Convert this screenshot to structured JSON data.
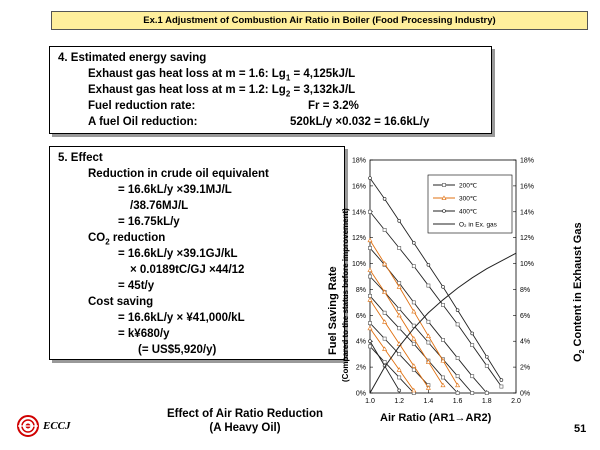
{
  "header": {
    "title": "Ex.1  Adjustment of Combustion Air Ratio in Boiler (Food Processing Industry)"
  },
  "saving": {
    "heading": "4. Estimated energy saving",
    "rows": [
      {
        "label": "Exhaust gas heat loss at m = 1.6: Lg",
        "sub": "1",
        "value": " = 4,125kJ/L"
      },
      {
        "label": "Exhaust gas heat loss at m = 1.2: Lg",
        "sub": "2",
        "value": " = 3,132kJ/L"
      }
    ],
    "fuel_rate_label": "Fuel reduction rate:",
    "fuel_rate_value": "Fr = 3.2%",
    "oil_label": "A fuel Oil reduction:",
    "oil_value": "520kL/y ×0.032 = 16.6kL/y"
  },
  "effect": {
    "heading": "5. Effect",
    "crude_heading": "Reduction in crude oil equivalent",
    "crude_line1": "= 16.6kL/y  ×39.1MJ/L",
    "crude_line2": "/38.76MJ/L",
    "crude_line3": "= 16.75kL/y",
    "co2_heading_pre": "CO",
    "co2_heading_sub": "2",
    "co2_heading_post": " reduction",
    "co2_line1": "= 16.6kL/y  ×39.1GJ/kL",
    "co2_line2": "×  0.0189tC/GJ  ×44/12",
    "co2_line3": "= 45t/y",
    "cost_heading": "Cost saving",
    "cost_line1": "= 16.6kL/y  ×  ¥41,000/kL",
    "cost_line2": "= k¥680/y",
    "cost_line3": "(= US$5,920/y)"
  },
  "caption": {
    "line1": "Effect of Air Ratio Reduction",
    "line2": "(A Heavy Oil)"
  },
  "logo": {
    "text": "ECCJ"
  },
  "page_number": "51",
  "chart_data": {
    "type": "line",
    "xlabel": "Air Ratio (AR1→AR2)",
    "ylabel": "Fuel Saving Rate",
    "ylabel2": "(Compared to the status before improvement)",
    "y2label_pre": "O",
    "y2label_sub": "2",
    "y2label_post": " Content in Exhaust Gas",
    "xlim": [
      1.0,
      2.0
    ],
    "ylim": [
      0,
      18
    ],
    "x_ticks": [
      "1.0",
      "1.2",
      "1.4",
      "1.6",
      "1.8",
      "2.0"
    ],
    "y_ticks": [
      "0%",
      "2%",
      "4%",
      "6%",
      "8%",
      "10%",
      "12%",
      "14%",
      "16%",
      "18%"
    ],
    "legend": [
      "200℃",
      "300℃",
      "400℃",
      "O₂ in Ex. gas"
    ],
    "colors": {
      "200": "#222222",
      "300": "#e07010",
      "400": "#222222",
      "o2": "#222222",
      "marker": "#555555"
    },
    "series_200": [
      {
        "start": 1.0,
        "values": [
          3.6,
          2.4,
          1.2,
          0
        ]
      },
      {
        "start": 1.0,
        "values": [
          5.4,
          4.2,
          3.0,
          1.8,
          0.6
        ]
      },
      {
        "start": 1.0,
        "values": [
          7.5,
          6.2,
          5.0,
          3.8,
          2.5,
          1.2,
          0
        ]
      },
      {
        "start": 1.0,
        "values": [
          9.0,
          7.8,
          6.5,
          5.2,
          3.9,
          2.6,
          1.3,
          0
        ]
      },
      {
        "start": 1.0,
        "values": [
          11.2,
          9.9,
          8.5,
          7.0,
          5.5,
          4.1,
          2.7,
          1.3,
          0
        ]
      },
      {
        "start": 1.0,
        "values": [
          14.0,
          12.6,
          11.2,
          9.8,
          8.3,
          6.8,
          5.3,
          3.7,
          2.1,
          0.5
        ]
      }
    ],
    "series_300": [
      {
        "start": 1.0,
        "values": [
          5.0,
          3.4,
          1.8,
          0.2
        ]
      },
      {
        "start": 1.0,
        "values": [
          7.2,
          5.5,
          3.8,
          2.1,
          0.4
        ]
      },
      {
        "start": 1.0,
        "values": [
          9.5,
          7.8,
          6.0,
          4.2,
          2.4,
          0.6
        ]
      },
      {
        "start": 1.0,
        "values": [
          11.8,
          10.0,
          8.2,
          6.3,
          4.4,
          2.5,
          0.6
        ]
      }
    ],
    "series_400": [
      {
        "start": 1.0,
        "values": [
          16.6,
          15.0,
          13.3,
          11.6,
          9.9,
          8.2,
          6.4,
          4.6,
          2.8,
          1.0
        ]
      },
      {
        "start": 1.0,
        "values": [
          4.0,
          2.1,
          0.2
        ]
      }
    ],
    "o2_curve": [
      {
        "x": 1.0,
        "y": 0
      },
      {
        "x": 1.1,
        "y": 2.0
      },
      {
        "x": 1.2,
        "y": 3.6
      },
      {
        "x": 1.3,
        "y": 5.0
      },
      {
        "x": 1.4,
        "y": 6.2
      },
      {
        "x": 1.5,
        "y": 7.2
      },
      {
        "x": 1.6,
        "y": 8.1
      },
      {
        "x": 1.7,
        "y": 8.9
      },
      {
        "x": 1.8,
        "y": 9.6
      },
      {
        "x": 1.9,
        "y": 10.2
      },
      {
        "x": 2.0,
        "y": 10.8
      }
    ]
  }
}
